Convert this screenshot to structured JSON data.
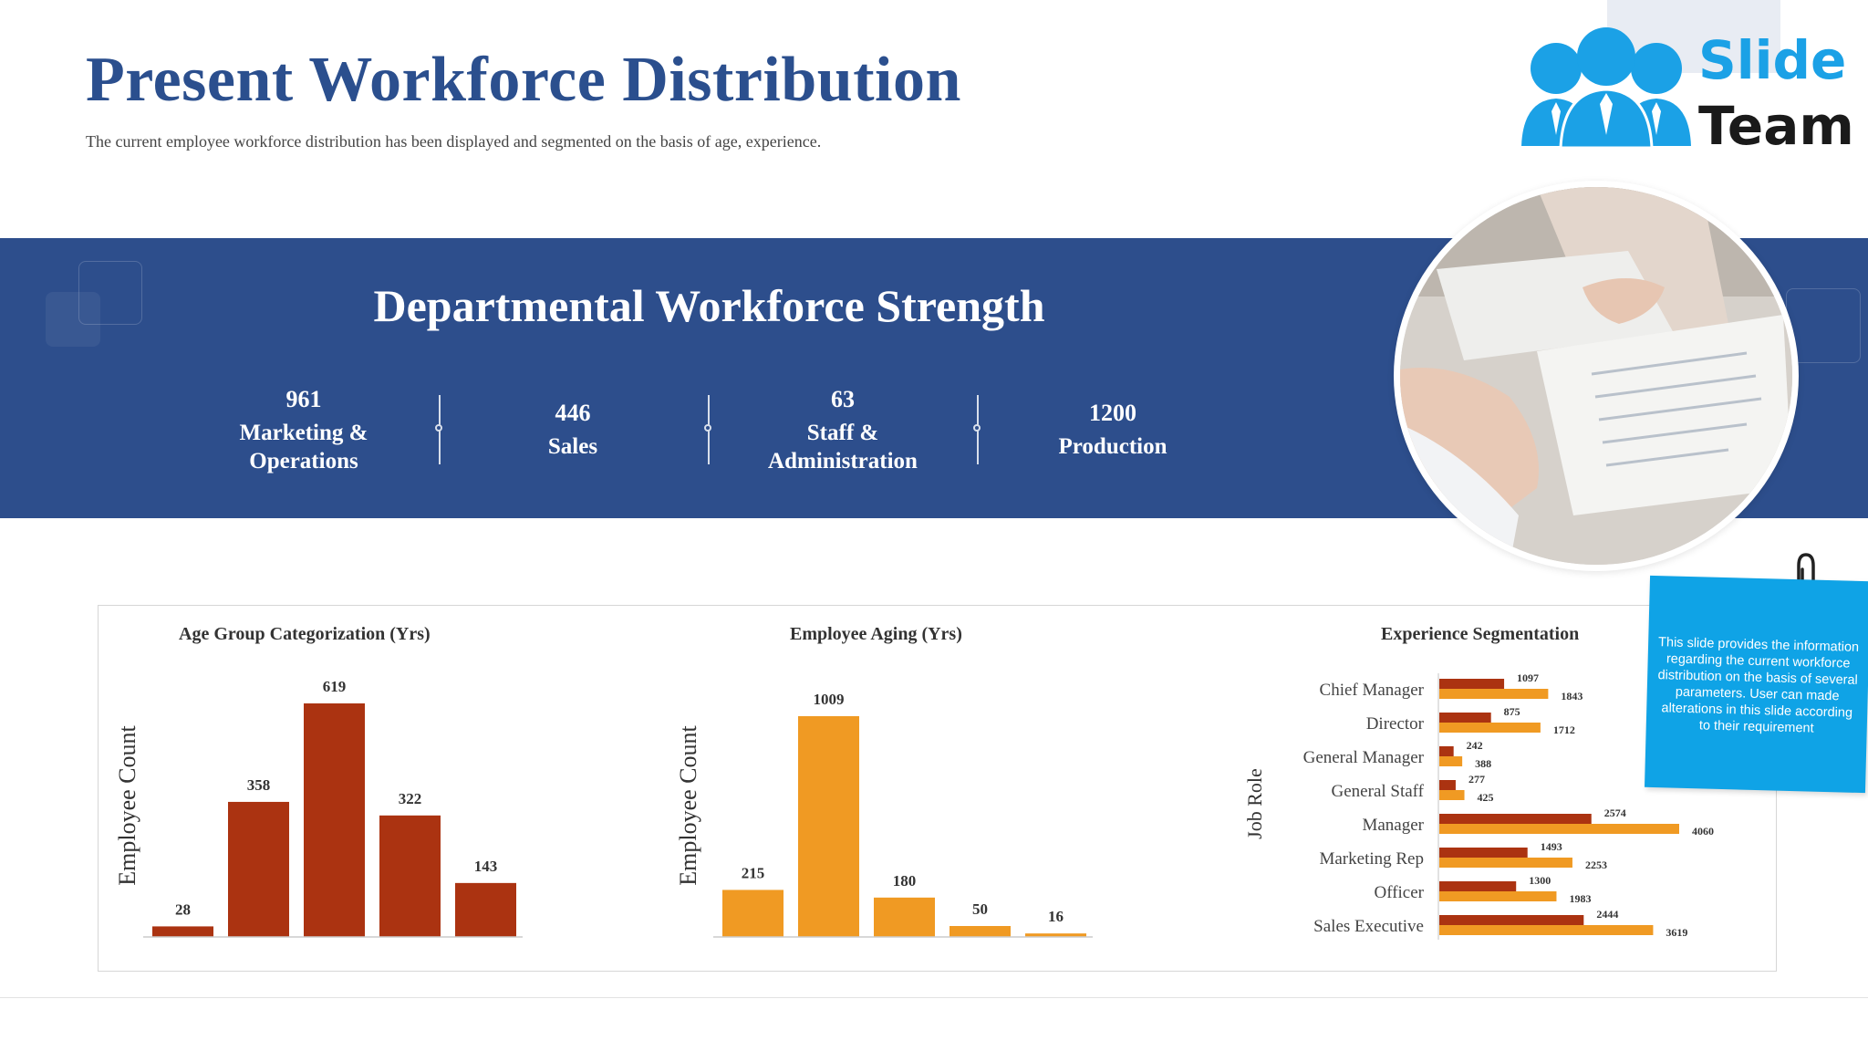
{
  "page": {
    "title": "Present Workforce Distribution",
    "subtitle": "The current employee workforce distribution has been displayed and segmented on the basis of age, experience."
  },
  "logo": {
    "word1": "Slide",
    "word2": "Team",
    "icon": "team-people-icon",
    "color": "#1ba1e6"
  },
  "banner": {
    "title": "Departmental Workforce Strength",
    "color": "#2d4e8c",
    "stats": [
      {
        "value": "961",
        "label_line1": "Marketing &",
        "label_line2": "Operations"
      },
      {
        "value": "446",
        "label_line1": "Sales",
        "label_line2": ""
      },
      {
        "value": "63",
        "label_line1": "Staff &",
        "label_line2": "Administration"
      },
      {
        "value": "1200",
        "label_line1": "Production",
        "label_line2": ""
      }
    ]
  },
  "note": {
    "text": "This slide provides the information regarding the current workforce distribution on the basis of several parameters. User can made alterations in this slide according to their requirement",
    "color": "#0fa3e6",
    "icon": "paperclip-icon"
  },
  "chart_data": [
    {
      "type": "bar",
      "title": "Age Group Categorization (Yrs)",
      "ylabel": "Employee Count",
      "xlabel": "",
      "values": [
        28,
        358,
        619,
        322,
        143
      ],
      "color": "#ab3311",
      "grid": false
    },
    {
      "type": "bar",
      "title": "Employee Aging (Yrs)",
      "ylabel": "Employee Count",
      "xlabel": "",
      "values": [
        215,
        1009,
        180,
        50,
        16
      ],
      "color": "#f09a23",
      "grid": false
    },
    {
      "type": "bar",
      "orientation": "horizontal",
      "title": "Experience Segmentation",
      "ylabel": "Job Role",
      "categories": [
        "Chief Manager",
        "Director",
        "General Manager",
        "General Staff",
        "Manager",
        "Marketing Rep",
        "Officer",
        "Sales Executive"
      ],
      "series": [
        {
          "values": [
            1097,
            875,
            242,
            277,
            2574,
            1493,
            1300,
            2444
          ],
          "color": "#ab3311"
        },
        {
          "values": [
            1843,
            1712,
            388,
            425,
            4060,
            2253,
            1983,
            3619
          ],
          "color": "#f09a23"
        }
      ],
      "grid": false
    }
  ]
}
